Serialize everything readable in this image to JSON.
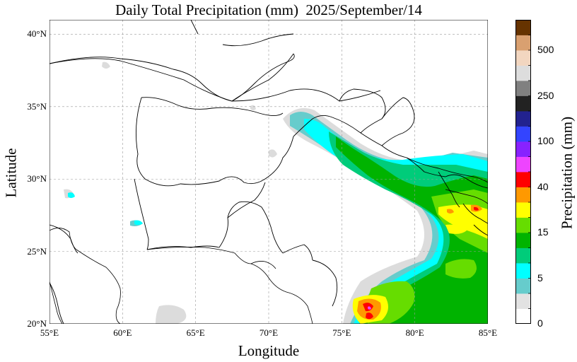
{
  "title": "Daily Total Precipitation (mm)  2025/September/14",
  "axes": {
    "xlabel": "Longitude",
    "ylabel": "Latitude",
    "lon_range": [
      55,
      85
    ],
    "lat_range": [
      20,
      41
    ],
    "xticks": [
      "55°E",
      "60°E",
      "65°E",
      "70°E",
      "75°E",
      "80°E",
      "85°E"
    ],
    "yticks": [
      "20°N",
      "25°N",
      "30°N",
      "35°N",
      "40°N"
    ],
    "grid": true
  },
  "colorbar": {
    "title": "Precipitation (mm)",
    "labels": [
      "0",
      "5",
      "15",
      "40",
      "100",
      "250",
      "500"
    ],
    "colors": [
      "#ffffff",
      "#e2e2e2",
      "#66cccc",
      "#00ffff",
      "#00cc7a",
      "#00b300",
      "#66dd00",
      "#ffff00",
      "#ff9900",
      "#ff0000",
      "#ee44ff",
      "#8822ff",
      "#3344ff",
      "#22228f",
      "#222222",
      "#808080",
      "#dddddd",
      "#f2d6c0",
      "#d9a070",
      "#663300"
    ]
  },
  "map_features": {
    "precip_regions": [
      "northern Pakistan / Kashmir",
      "northern India plains",
      "central India"
    ],
    "peak_region": "central India near 77°E, 22°N"
  }
}
